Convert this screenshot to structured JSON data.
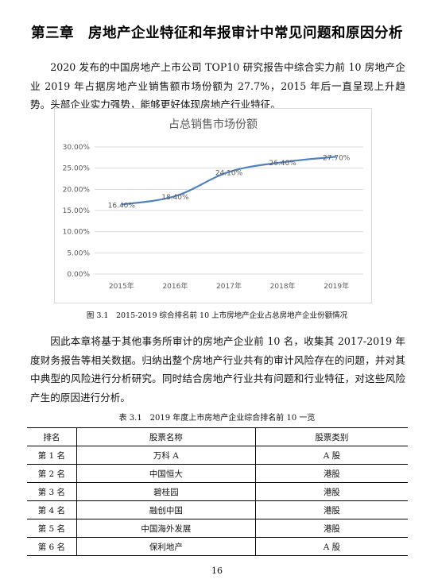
{
  "chapter": {
    "title": "第三章　房地产企业特征和年报审计中常见问题和原因分析"
  },
  "paragraphs": {
    "intro": "2020 发布的中国房地产上市公司 TOP10 研究报告中综合实力前 10 房地产企业 2019 年占据房地产业销售额市场份额为 27.7%，2015 年后一直呈现上升趋势。头部企业实力强势，能够更好体现房地产行业特征。",
    "method": "因此本章将基于其他事务所审计的房地产企业前 10 名，收集其 2017-2019 年度财务报告等相关数据。归纳出整个房地产行业共有的审计风险存在的问题，并对其中典型的风险进行分析研究。同时结合房地产行业共有问题和行业特征，对这些风险产生的原因进行分析。"
  },
  "chart_data": {
    "type": "line",
    "title": "占总销售市场份额",
    "categories": [
      "2015年",
      "2016年",
      "2017年",
      "2018年",
      "2019年"
    ],
    "series": [
      {
        "values": [
          16.4,
          18.4,
          24.1,
          26.4,
          27.7
        ]
      }
    ],
    "data_labels": [
      "16.40%",
      "18.40%",
      "24.10%",
      "26.40%",
      "27.70%"
    ],
    "y_tick_labels": [
      "0.00%",
      "5.00%",
      "10.00%",
      "15.00%",
      "20.00%",
      "25.00%",
      "30.00%"
    ],
    "ylim": [
      0,
      30
    ],
    "ystep": 5,
    "grid": true,
    "legend": "none",
    "line_color": "#4f81bd",
    "grid_color": "#d9d9d9",
    "label_color": "#595959"
  },
  "figure": {
    "caption": "图 3.1　2015-2019 综合排名前 10 上市房地产企业占总房地产企业份额情况"
  },
  "table": {
    "caption": "表 3.1　2019 年度上市房地产企业综合排名前 10 一览",
    "headers": [
      "排名",
      "股票名称",
      "股票类别"
    ],
    "rows": [
      [
        "第 1 名",
        "万科 A",
        "A 股"
      ],
      [
        "第 2 名",
        "中国恒大",
        "港股"
      ],
      [
        "第 3 名",
        "碧桂园",
        "港股"
      ],
      [
        "第 4 名",
        "融创中国",
        "港股"
      ],
      [
        "第 5 名",
        "中国海外发展",
        "港股"
      ],
      [
        "第 6 名",
        "保利地产",
        "A 股"
      ]
    ]
  },
  "page": {
    "number": "16"
  }
}
